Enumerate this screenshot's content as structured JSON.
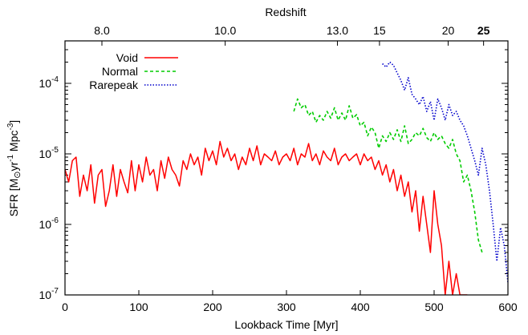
{
  "chart_data": {
    "type": "line",
    "title": "",
    "xlabel": "Lookback Time [Myr]",
    "ylabel": {
      "prefix": "SFR [M",
      "sun_symbol": "⊙",
      "yr": "yr",
      "yr_exp": "-1",
      "mpc": "Mpc",
      "mpc_exp": "-3",
      "suffix": "]"
    },
    "top_axis_label": "Redshift",
    "xlim": [
      0,
      600
    ],
    "ylim": [
      1e-07,
      0.0004
    ],
    "yscale": "log",
    "grid": false,
    "legend_position": "top-left",
    "x_ticks": [
      "0",
      "100",
      "200",
      "300",
      "400",
      "500",
      "600"
    ],
    "y_ticks": [
      {
        "base": "10",
        "exp": "-7",
        "value": 1e-07
      },
      {
        "base": "10",
        "exp": "-6",
        "value": 1e-06
      },
      {
        "base": "10",
        "exp": "-5",
        "value": 1e-05
      },
      {
        "base": "10",
        "exp": "-4",
        "value": 0.0001
      }
    ],
    "top_ticks": [
      {
        "label": "8.0",
        "x": 50,
        "bold": false
      },
      {
        "label": "10.0",
        "x": 217,
        "bold": false
      },
      {
        "label": "13.0",
        "x": 369,
        "bold": false
      },
      {
        "label": "15",
        "x": 426,
        "bold": false
      },
      {
        "label": "20",
        "x": 519,
        "bold": false
      },
      {
        "label": "25",
        "x": 567,
        "bold": true
      }
    ],
    "series": [
      {
        "name": "Void",
        "color": "#ff0000",
        "style": "solid",
        "x": [
          0,
          5,
          10,
          15,
          20,
          25,
          30,
          35,
          40,
          45,
          50,
          55,
          60,
          65,
          70,
          75,
          80,
          85,
          90,
          95,
          100,
          105,
          110,
          115,
          120,
          125,
          130,
          135,
          140,
          145,
          150,
          155,
          160,
          165,
          170,
          175,
          180,
          185,
          190,
          195,
          200,
          205,
          210,
          215,
          220,
          225,
          230,
          235,
          240,
          245,
          250,
          255,
          260,
          265,
          270,
          275,
          280,
          285,
          290,
          295,
          300,
          305,
          310,
          315,
          320,
          325,
          330,
          335,
          340,
          345,
          350,
          355,
          360,
          365,
          370,
          375,
          380,
          385,
          390,
          395,
          400,
          405,
          410,
          415,
          420,
          425,
          430,
          435,
          440,
          445,
          450,
          455,
          460,
          465,
          470,
          475,
          480,
          485,
          490,
          495,
          500,
          505,
          510,
          515,
          520,
          525,
          530,
          535,
          540,
          545
        ],
        "values": [
          6e-06,
          4e-06,
          8e-06,
          9e-06,
          2.5e-06,
          5e-06,
          3e-06,
          7e-06,
          2e-06,
          5e-06,
          6e-06,
          1.8e-06,
          3e-06,
          7e-06,
          2.5e-06,
          6e-06,
          4e-06,
          2.8e-06,
          8e-06,
          3e-06,
          7e-06,
          4e-06,
          9e-06,
          5e-06,
          6e-06,
          3e-06,
          8e-06,
          4.5e-06,
          9e-06,
          6e-06,
          5e-06,
          3.5e-06,
          8e-06,
          6e-06,
          1e-05,
          7e-06,
          9e-06,
          5e-06,
          1.2e-05,
          8e-06,
          1.1e-05,
          7e-06,
          1.5e-05,
          9e-06,
          1.2e-05,
          8e-06,
          1e-05,
          6e-06,
          9e-06,
          7e-06,
          1.2e-05,
          8e-06,
          1.3e-05,
          7e-06,
          1e-05,
          9e-06,
          8e-06,
          1.1e-05,
          7e-06,
          9e-06,
          1e-05,
          8e-06,
          1.2e-05,
          7e-06,
          1e-05,
          9e-06,
          1.4e-05,
          8e-06,
          1e-05,
          7e-06,
          1.1e-05,
          9e-06,
          8e-06,
          1.2e-05,
          7e-06,
          9e-06,
          1e-05,
          8e-06,
          9e-06,
          1e-05,
          7e-06,
          1e-05,
          8e-06,
          9e-06,
          6e-06,
          8e-06,
          5e-06,
          7e-06,
          4e-06,
          6e-06,
          3e-06,
          5e-06,
          2.5e-06,
          4e-06,
          1.5e-06,
          3e-06,
          8e-07,
          2.5e-06,
          1e-06,
          4e-07,
          3e-06,
          1e-06,
          5e-07,
          1e-07,
          3e-07,
          1e-07,
          2e-07,
          1e-07,
          1e-07,
          1e-07
        ]
      },
      {
        "name": "Normal",
        "color": "#00cc00",
        "style": "dashed",
        "x": [
          310,
          315,
          320,
          325,
          330,
          335,
          340,
          345,
          350,
          355,
          360,
          365,
          370,
          375,
          380,
          385,
          390,
          395,
          400,
          405,
          410,
          415,
          420,
          425,
          430,
          435,
          440,
          445,
          450,
          455,
          460,
          465,
          470,
          475,
          480,
          485,
          490,
          495,
          500,
          505,
          510,
          515,
          520,
          525,
          530,
          535,
          540,
          545,
          550,
          555,
          560,
          565
        ],
        "values": [
          4e-05,
          6e-05,
          4.5e-05,
          5e-05,
          3.5e-05,
          4e-05,
          2.8e-05,
          3.5e-05,
          3e-05,
          4e-05,
          3.2e-05,
          4.5e-05,
          3e-05,
          3.8e-05,
          3e-05,
          4.8e-05,
          3.2e-05,
          3.6e-05,
          2.5e-05,
          2.8e-05,
          1.8e-05,
          2.4e-05,
          2e-05,
          1.2e-05,
          1.8e-05,
          1.5e-05,
          2e-05,
          1.6e-05,
          2.2e-05,
          1.5e-05,
          2.5e-05,
          1.4e-05,
          1.6e-05,
          2e-05,
          1.8e-05,
          2.3e-05,
          1.7e-05,
          1.5e-05,
          2e-05,
          1.6e-05,
          1.8e-05,
          1.4e-05,
          1.2e-05,
          1.6e-05,
          1e-05,
          8e-06,
          4e-06,
          5e-06,
          3e-06,
          1.5e-06,
          6e-07,
          4e-07
        ]
      },
      {
        "name": "Rarepeak",
        "color": "#0000cc",
        "style": "dotted",
        "x": [
          430,
          435,
          440,
          445,
          450,
          455,
          460,
          465,
          470,
          475,
          480,
          485,
          490,
          495,
          500,
          505,
          510,
          515,
          520,
          525,
          530,
          535,
          540,
          545,
          550,
          555,
          560,
          565,
          570,
          575,
          580,
          585,
          590,
          595,
          600
        ],
        "values": [
          0.00019,
          0.00017,
          0.0002,
          0.00018,
          0.00014,
          0.00011,
          8e-05,
          0.00012,
          7e-05,
          6e-05,
          5e-05,
          6.5e-05,
          4e-05,
          5.5e-05,
          3e-05,
          6e-05,
          4.5e-05,
          3e-05,
          5e-05,
          3.5e-05,
          4e-05,
          3e-05,
          2.5e-05,
          1.8e-05,
          1.2e-05,
          8e-06,
          5e-06,
          1.2e-05,
          7e-06,
          3e-06,
          1e-06,
          3e-07,
          9e-07,
          5e-07,
          1.5e-07
        ]
      }
    ]
  }
}
